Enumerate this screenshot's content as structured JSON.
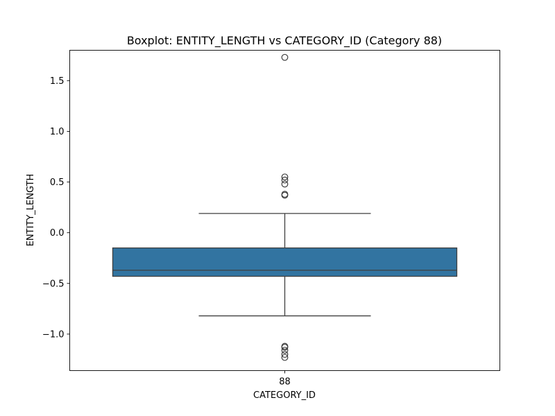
{
  "chart_data": {
    "type": "box",
    "title": "Boxplot: ENTITY_LENGTH vs CATEGORY_ID (Category 88)",
    "xlabel": "CATEGORY_ID",
    "ylabel": "ENTITY_LENGTH",
    "categories": [
      "88"
    ],
    "ylim": [
      -1.36,
      1.8
    ],
    "yticks": [
      -1.0,
      -0.5,
      0.0,
      0.5,
      1.0,
      1.5
    ],
    "ytick_labels": [
      "−1.0",
      "−0.5",
      "0.0",
      "0.5",
      "1.0",
      "1.5"
    ],
    "grid": false,
    "box_color": "#3274a1",
    "line_color": "#3f3f3f",
    "boxes": [
      {
        "category": "88",
        "whisker_low": -0.82,
        "q1": -0.43,
        "median": -0.37,
        "q3": -0.15,
        "whisker_high": 0.19,
        "outliers": [
          1.73,
          0.55,
          0.52,
          0.48,
          0.38,
          0.37,
          -1.12,
          -1.13,
          -1.16,
          -1.2,
          -1.23
        ]
      }
    ]
  }
}
